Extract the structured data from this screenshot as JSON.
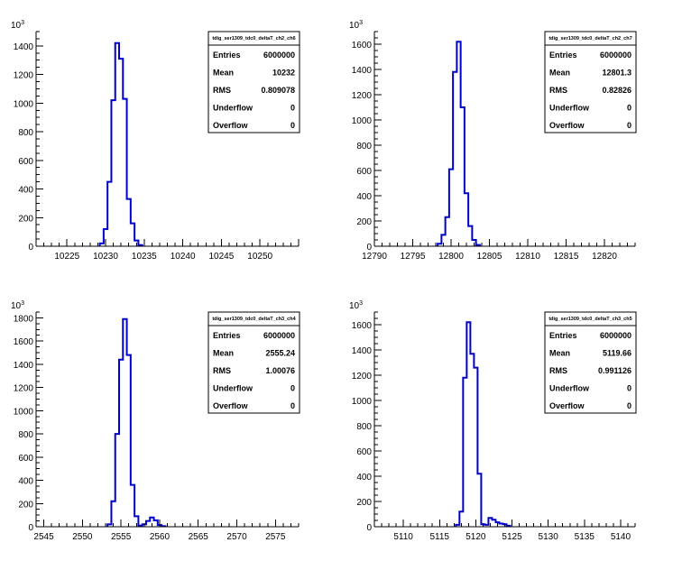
{
  "chart_data": [
    {
      "type": "bar",
      "title": "tdig_ser1309_tdc0_deltaT_ch2_ch6",
      "x_min": 10221,
      "x_max": 10255,
      "bin_width": 0.5,
      "x_ticks": [
        10225,
        10230,
        10235,
        10240,
        10245,
        10250
      ],
      "ylim": [
        0,
        1500
      ],
      "y_ticks": [
        0,
        200,
        400,
        600,
        800,
        1000,
        1200,
        1400
      ],
      "y_exponent": "10",
      "y_exponent_power": "3",
      "bins": [
        {
          "x": 10229.5,
          "y": 20
        },
        {
          "x": 10230,
          "y": 120
        },
        {
          "x": 10230.5,
          "y": 450
        },
        {
          "x": 10231,
          "y": 1020
        },
        {
          "x": 10231.5,
          "y": 1420
        },
        {
          "x": 10232,
          "y": 1310
        },
        {
          "x": 10232.5,
          "y": 1030
        },
        {
          "x": 10233,
          "y": 330
        },
        {
          "x": 10233.5,
          "y": 160
        },
        {
          "x": 10234,
          "y": 40
        },
        {
          "x": 10234.5,
          "y": 8
        }
      ],
      "stats": [
        {
          "label": "Entries",
          "value": "6000000"
        },
        {
          "label": "Mean",
          "value": "10232"
        },
        {
          "label": "RMS",
          "value": "0.809078"
        },
        {
          "label": "Underflow",
          "value": "0"
        },
        {
          "label": "Overflow",
          "value": "0"
        }
      ]
    },
    {
      "type": "bar",
      "title": "tdig_ser1309_tdc0_deltaT_ch2_ch7",
      "x_min": 12790,
      "x_max": 12824,
      "bin_width": 0.5,
      "x_ticks": [
        12790,
        12795,
        12800,
        12805,
        12810,
        12815,
        12820
      ],
      "ylim": [
        0,
        1700
      ],
      "y_ticks": [
        0,
        200,
        400,
        600,
        800,
        1000,
        1200,
        1400,
        1600
      ],
      "y_exponent": "10",
      "y_exponent_power": "3",
      "bins": [
        {
          "x": 12798.5,
          "y": 20
        },
        {
          "x": 12799,
          "y": 90
        },
        {
          "x": 12799.5,
          "y": 230
        },
        {
          "x": 12800,
          "y": 610
        },
        {
          "x": 12800.5,
          "y": 1380
        },
        {
          "x": 12801,
          "y": 1620
        },
        {
          "x": 12801.5,
          "y": 1100
        },
        {
          "x": 12802,
          "y": 420
        },
        {
          "x": 12802.5,
          "y": 160
        },
        {
          "x": 12803,
          "y": 50
        },
        {
          "x": 12803.5,
          "y": 10
        }
      ],
      "stats": [
        {
          "label": "Entries",
          "value": "6000000"
        },
        {
          "label": "Mean",
          "value": "12801.3"
        },
        {
          "label": "RMS",
          "value": "0.82826"
        },
        {
          "label": "Underflow",
          "value": "0"
        },
        {
          "label": "Overflow",
          "value": "0"
        }
      ]
    },
    {
      "type": "bar",
      "title": "tdig_ser1309_tdc0_deltaT_ch3_ch4",
      "x_min": 2544,
      "x_max": 2578,
      "bin_width": 0.5,
      "x_ticks": [
        2545,
        2550,
        2555,
        2560,
        2565,
        2570,
        2575
      ],
      "ylim": [
        0,
        1850
      ],
      "y_ticks": [
        0,
        200,
        400,
        600,
        800,
        1000,
        1200,
        1400,
        1600,
        1800
      ],
      "y_exponent": "10",
      "y_exponent_power": "3",
      "bins": [
        {
          "x": 2553.5,
          "y": 20
        },
        {
          "x": 2554,
          "y": 220
        },
        {
          "x": 2554.5,
          "y": 800
        },
        {
          "x": 2555,
          "y": 1440
        },
        {
          "x": 2555.5,
          "y": 1790
        },
        {
          "x": 2556,
          "y": 1480
        },
        {
          "x": 2556.5,
          "y": 360
        },
        {
          "x": 2557,
          "y": 90
        },
        {
          "x": 2557.5,
          "y": 10
        },
        {
          "x": 2558,
          "y": 20
        },
        {
          "x": 2558.5,
          "y": 50
        },
        {
          "x": 2559,
          "y": 80
        },
        {
          "x": 2559.5,
          "y": 55
        },
        {
          "x": 2560,
          "y": 15
        },
        {
          "x": 2560.5,
          "y": 5
        }
      ],
      "stats": [
        {
          "label": "Entries",
          "value": "6000000"
        },
        {
          "label": "Mean",
          "value": "2555.24"
        },
        {
          "label": "RMS",
          "value": "1.00076"
        },
        {
          "label": "Underflow",
          "value": "0"
        },
        {
          "label": "Overflow",
          "value": "0"
        }
      ]
    },
    {
      "type": "bar",
      "title": "tdig_ser1309_tdc0_deltaT_ch3_ch5",
      "x_min": 5106,
      "x_max": 5142,
      "bin_width": 0.5,
      "x_ticks": [
        5110,
        5115,
        5120,
        5125,
        5130,
        5135,
        5140
      ],
      "ylim": [
        0,
        1700
      ],
      "y_ticks": [
        0,
        200,
        400,
        600,
        800,
        1000,
        1200,
        1400,
        1600
      ],
      "y_exponent": "10",
      "y_exponent_power": "3",
      "bins": [
        {
          "x": 5117.5,
          "y": 15
        },
        {
          "x": 5118,
          "y": 120
        },
        {
          "x": 5118.5,
          "y": 1180
        },
        {
          "x": 5119,
          "y": 1620
        },
        {
          "x": 5119.5,
          "y": 1370
        },
        {
          "x": 5120,
          "y": 1260
        },
        {
          "x": 5120.5,
          "y": 420
        },
        {
          "x": 5121,
          "y": 20
        },
        {
          "x": 5121.5,
          "y": 15
        },
        {
          "x": 5122,
          "y": 70
        },
        {
          "x": 5122.5,
          "y": 55
        },
        {
          "x": 5123,
          "y": 35
        },
        {
          "x": 5123.5,
          "y": 25
        },
        {
          "x": 5124,
          "y": 20
        },
        {
          "x": 5124.5,
          "y": 8
        }
      ],
      "stats": [
        {
          "label": "Entries",
          "value": "6000000"
        },
        {
          "label": "Mean",
          "value": "5119.66"
        },
        {
          "label": "RMS",
          "value": "0.991126"
        },
        {
          "label": "Underflow",
          "value": "0"
        },
        {
          "label": "Overflow",
          "value": "0"
        }
      ]
    }
  ]
}
